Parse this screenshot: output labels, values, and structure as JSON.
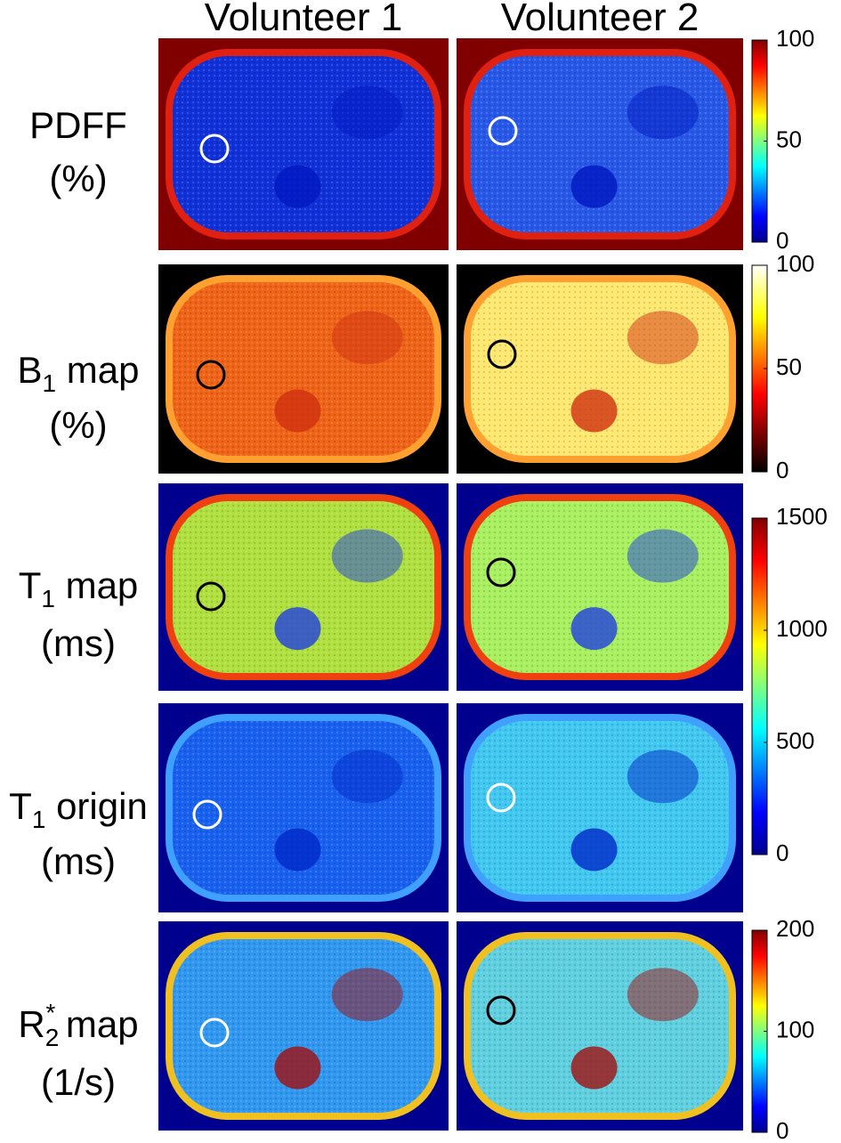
{
  "columns": [
    "Volunteer 1",
    "Volunteer 2"
  ],
  "rows": [
    {
      "label": "PDFF",
      "unit": "(%)"
    },
    {
      "label": "B",
      "sub": "1",
      "suffix": " map",
      "unit": "(%)"
    },
    {
      "label": "T",
      "sub": "1",
      "suffix": " map",
      "unit": "(ms)"
    },
    {
      "label": "T",
      "sub": "1",
      "suffix": " origin",
      "unit": "(ms)"
    },
    {
      "label": "R",
      "sub": "2",
      "sup": "*",
      "suffix": " map",
      "unit": "(1/s)"
    }
  ],
  "colorbars": [
    {
      "colormap": "jet",
      "lim": [
        0,
        100
      ],
      "ticks": [
        0,
        50,
        100
      ]
    },
    {
      "colormap": "hot",
      "lim": [
        0,
        100
      ],
      "ticks": [
        0,
        50,
        100
      ]
    },
    {
      "colormap": "jet",
      "lim": [
        0,
        1500
      ],
      "ticks": [
        0,
        500,
        1000,
        1500
      ]
    },
    {
      "colormap": "jet",
      "lim": [
        0,
        200
      ],
      "ticks": [
        0,
        100,
        200
      ]
    }
  ]
}
